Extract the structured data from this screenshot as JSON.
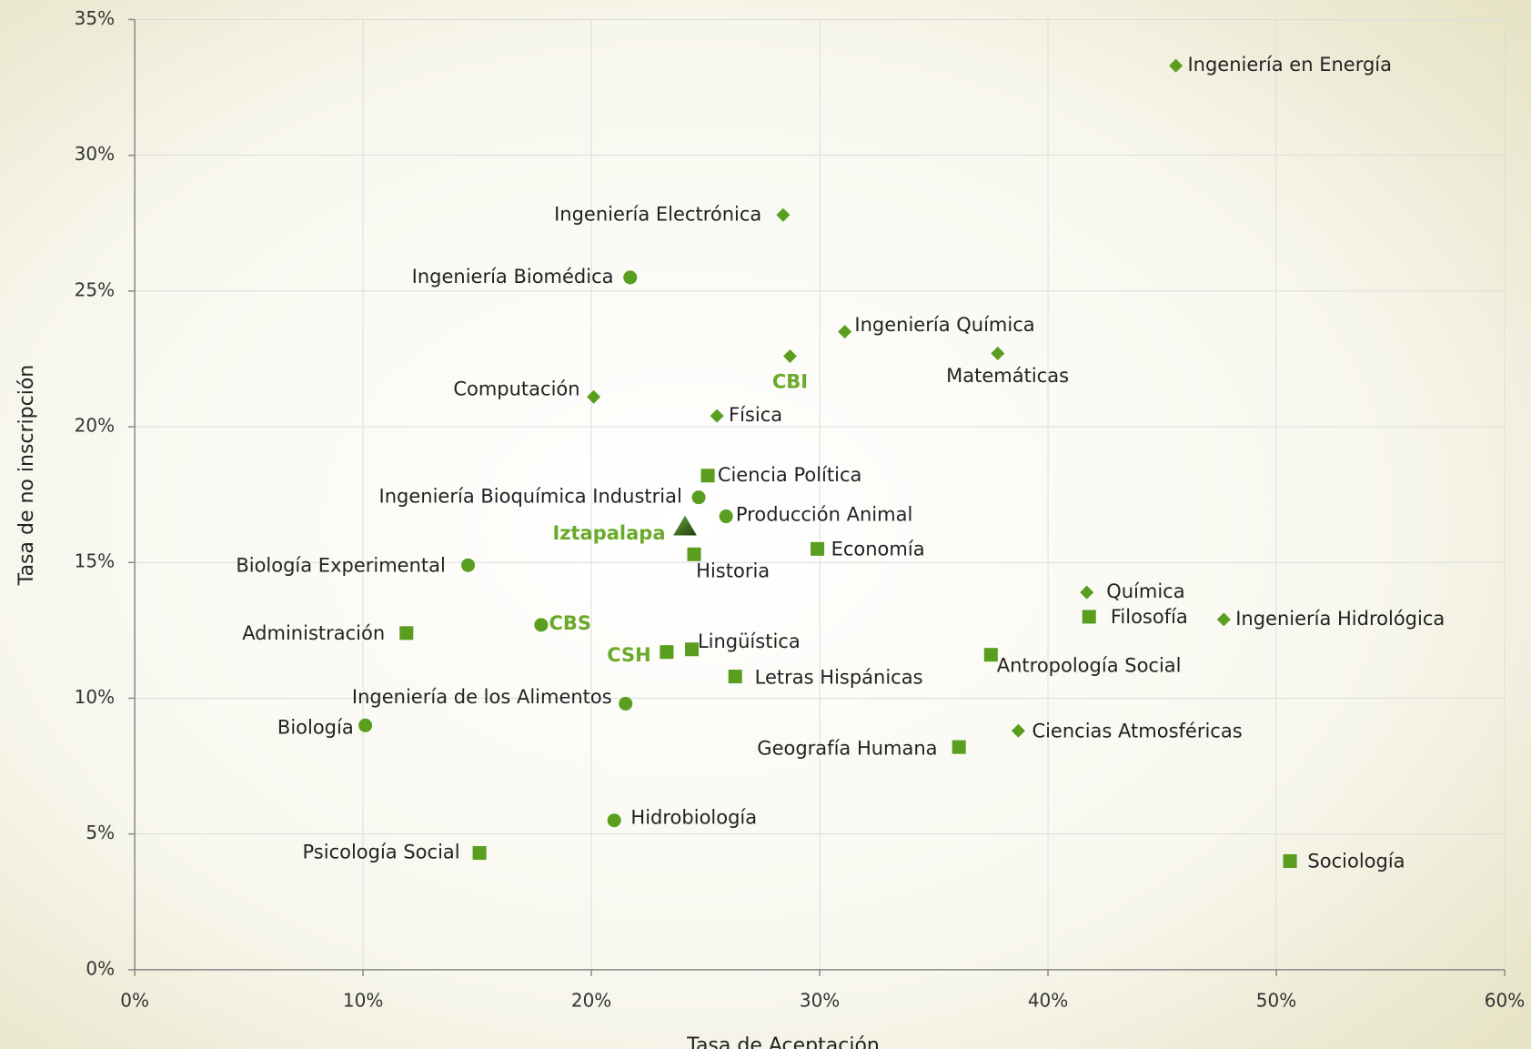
{
  "chart_data": {
    "type": "scatter",
    "ylabel": "Tasa de no inscripción",
    "xlabel": "Tasa de Aceptación",
    "xlim": [
      0,
      60
    ],
    "ylim": [
      0,
      35
    ],
    "xticks": [
      {
        "value": 0,
        "label": "0%"
      },
      {
        "value": 10,
        "label": "10%"
      },
      {
        "value": 20,
        "label": "20%"
      },
      {
        "value": 30,
        "label": "30%"
      },
      {
        "value": 40,
        "label": "40%"
      },
      {
        "value": 50,
        "label": "50%"
      },
      {
        "value": 60,
        "label": "60%"
      }
    ],
    "yticks": [
      {
        "value": 0,
        "label": "0%"
      },
      {
        "value": 5,
        "label": "5%"
      },
      {
        "value": 10,
        "label": "10%"
      },
      {
        "value": 15,
        "label": "15%"
      },
      {
        "value": 20,
        "label": "20%"
      },
      {
        "value": 25,
        "label": "25%"
      },
      {
        "value": 30,
        "label": "30%"
      },
      {
        "value": 35,
        "label": "35%"
      }
    ],
    "grid": true,
    "series": [
      {
        "marker": "diamond",
        "color": "#5a9e1f",
        "labels": [
          "Ingeniería en Energía",
          "Ingeniería Electrónica",
          "Ingeniería Química",
          "CBI",
          "Matemáticas",
          "Computación",
          "Física",
          "Química",
          "Ingeniería Hidrológica",
          "Ciencias Atmosféricas"
        ],
        "x": [
          45.6,
          28.4,
          31.1,
          28.7,
          37.8,
          20.1,
          25.5,
          41.7,
          47.7,
          38.7
        ],
        "y": [
          33.3,
          27.8,
          23.5,
          22.6,
          22.7,
          21.1,
          20.4,
          13.9,
          12.9,
          8.8
        ],
        "emphasis": [
          3
        ]
      },
      {
        "marker": "circle",
        "color": "#5a9e1f",
        "labels": [
          "Ingeniería Biomédica",
          "Ingeniería Bioquímica Industrial",
          "Producción Animal",
          "Biología Experimental",
          "CBS",
          "Ingeniería de los Alimentos",
          "Biología",
          "Hidrobiología"
        ],
        "x": [
          21.7,
          24.7,
          25.9,
          14.6,
          17.8,
          21.5,
          10.1,
          21.0
        ],
        "y": [
          25.5,
          17.4,
          16.7,
          14.9,
          12.7,
          9.8,
          9.0,
          5.5
        ],
        "emphasis": [
          4
        ]
      },
      {
        "marker": "square",
        "color": "#5a9e1f",
        "labels": [
          "Ciencia Política",
          "Economía",
          "Historia",
          "Filosofía",
          "Administración",
          "CSH",
          "Lingüística",
          "Letras Hispánicas",
          "Antropología Social",
          "Geografía Humana",
          "Psicología Social",
          "Sociología"
        ],
        "x": [
          25.1,
          29.9,
          24.5,
          41.8,
          11.9,
          23.3,
          24.4,
          26.3,
          37.5,
          36.1,
          15.1,
          50.6
        ],
        "y": [
          18.2,
          15.5,
          15.3,
          13.0,
          12.4,
          11.7,
          11.8,
          10.8,
          11.6,
          8.2,
          4.3,
          4.0
        ],
        "emphasis": [
          5
        ]
      },
      {
        "marker": "triangle",
        "color": "#3d6b1a",
        "labels": [
          "Iztapalapa"
        ],
        "x": [
          24.1
        ],
        "y": [
          16.3
        ],
        "emphasis": [
          0
        ]
      }
    ]
  }
}
